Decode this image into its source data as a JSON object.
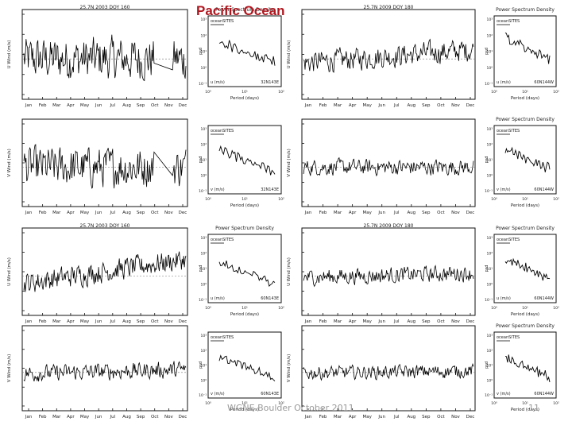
{
  "slide": {
    "title": "Pacific Ocean",
    "footer": "WGNE Boulder October 2011",
    "page_number": "11"
  },
  "chart_data": {
    "type": "line",
    "layout": "4 rows x 4 panels (time series + power spectrum)",
    "months": [
      "Jan",
      "Feb",
      "Mar",
      "Apr",
      "May",
      "Jun",
      "Jul",
      "Aug",
      "Sep",
      "Oct",
      "Nov",
      "Dec"
    ],
    "ts_titles": [
      "25.7N 2003 DOY 160",
      "25.7N 2009 DOY 180"
    ],
    "psd_title": "Power Spectrum Density",
    "psd_xlabel": "Period (days)",
    "psd_ylabel": "psd",
    "psd_legend": "oceanSITES",
    "rows": [
      {
        "ts_ylabel": "U Wind (m/s)",
        "psd_var": "u (m/s)",
        "psd_tags": [
          "32N143E",
          "60N144W"
        ]
      },
      {
        "ts_ylabel": "V Wind (m/s)",
        "psd_var": "v (m/s)",
        "psd_tags": [
          "32N143E",
          "60N144W"
        ]
      },
      {
        "ts_ylabel": "U Wind (m/s)",
        "psd_var": "u (m/s)",
        "psd_tags": [
          "60N143E",
          "60N144W"
        ]
      },
      {
        "ts_ylabel": "V Wind (m/s)",
        "psd_var": "v (m/s)",
        "psd_tags": [
          "60N143E",
          "60N144W"
        ]
      }
    ],
    "ts_style": [
      {
        "trend": 0.0,
        "amp": 0.42,
        "gap": true
      },
      {
        "trend": 0.3,
        "amp": 0.22,
        "gap": false
      },
      {
        "trend": 0.0,
        "amp": 0.4,
        "gap": true
      },
      {
        "trend": 0.0,
        "amp": 0.16,
        "gap": false
      },
      {
        "trend": 0.55,
        "amp": 0.22,
        "gap": false
      },
      {
        "trend": 0.1,
        "amp": 0.16,
        "gap": false
      },
      {
        "trend": 0.1,
        "amp": 0.17,
        "gap": false
      },
      {
        "trend": 0.05,
        "amp": 0.14,
        "gap": false
      }
    ],
    "psd_y_ticks": [
      "10³",
      "10²",
      "10¹",
      "10⁰",
      "10⁻¹"
    ],
    "psd_x_ticks": [
      "10⁰",
      "10¹",
      "10²"
    ]
  }
}
